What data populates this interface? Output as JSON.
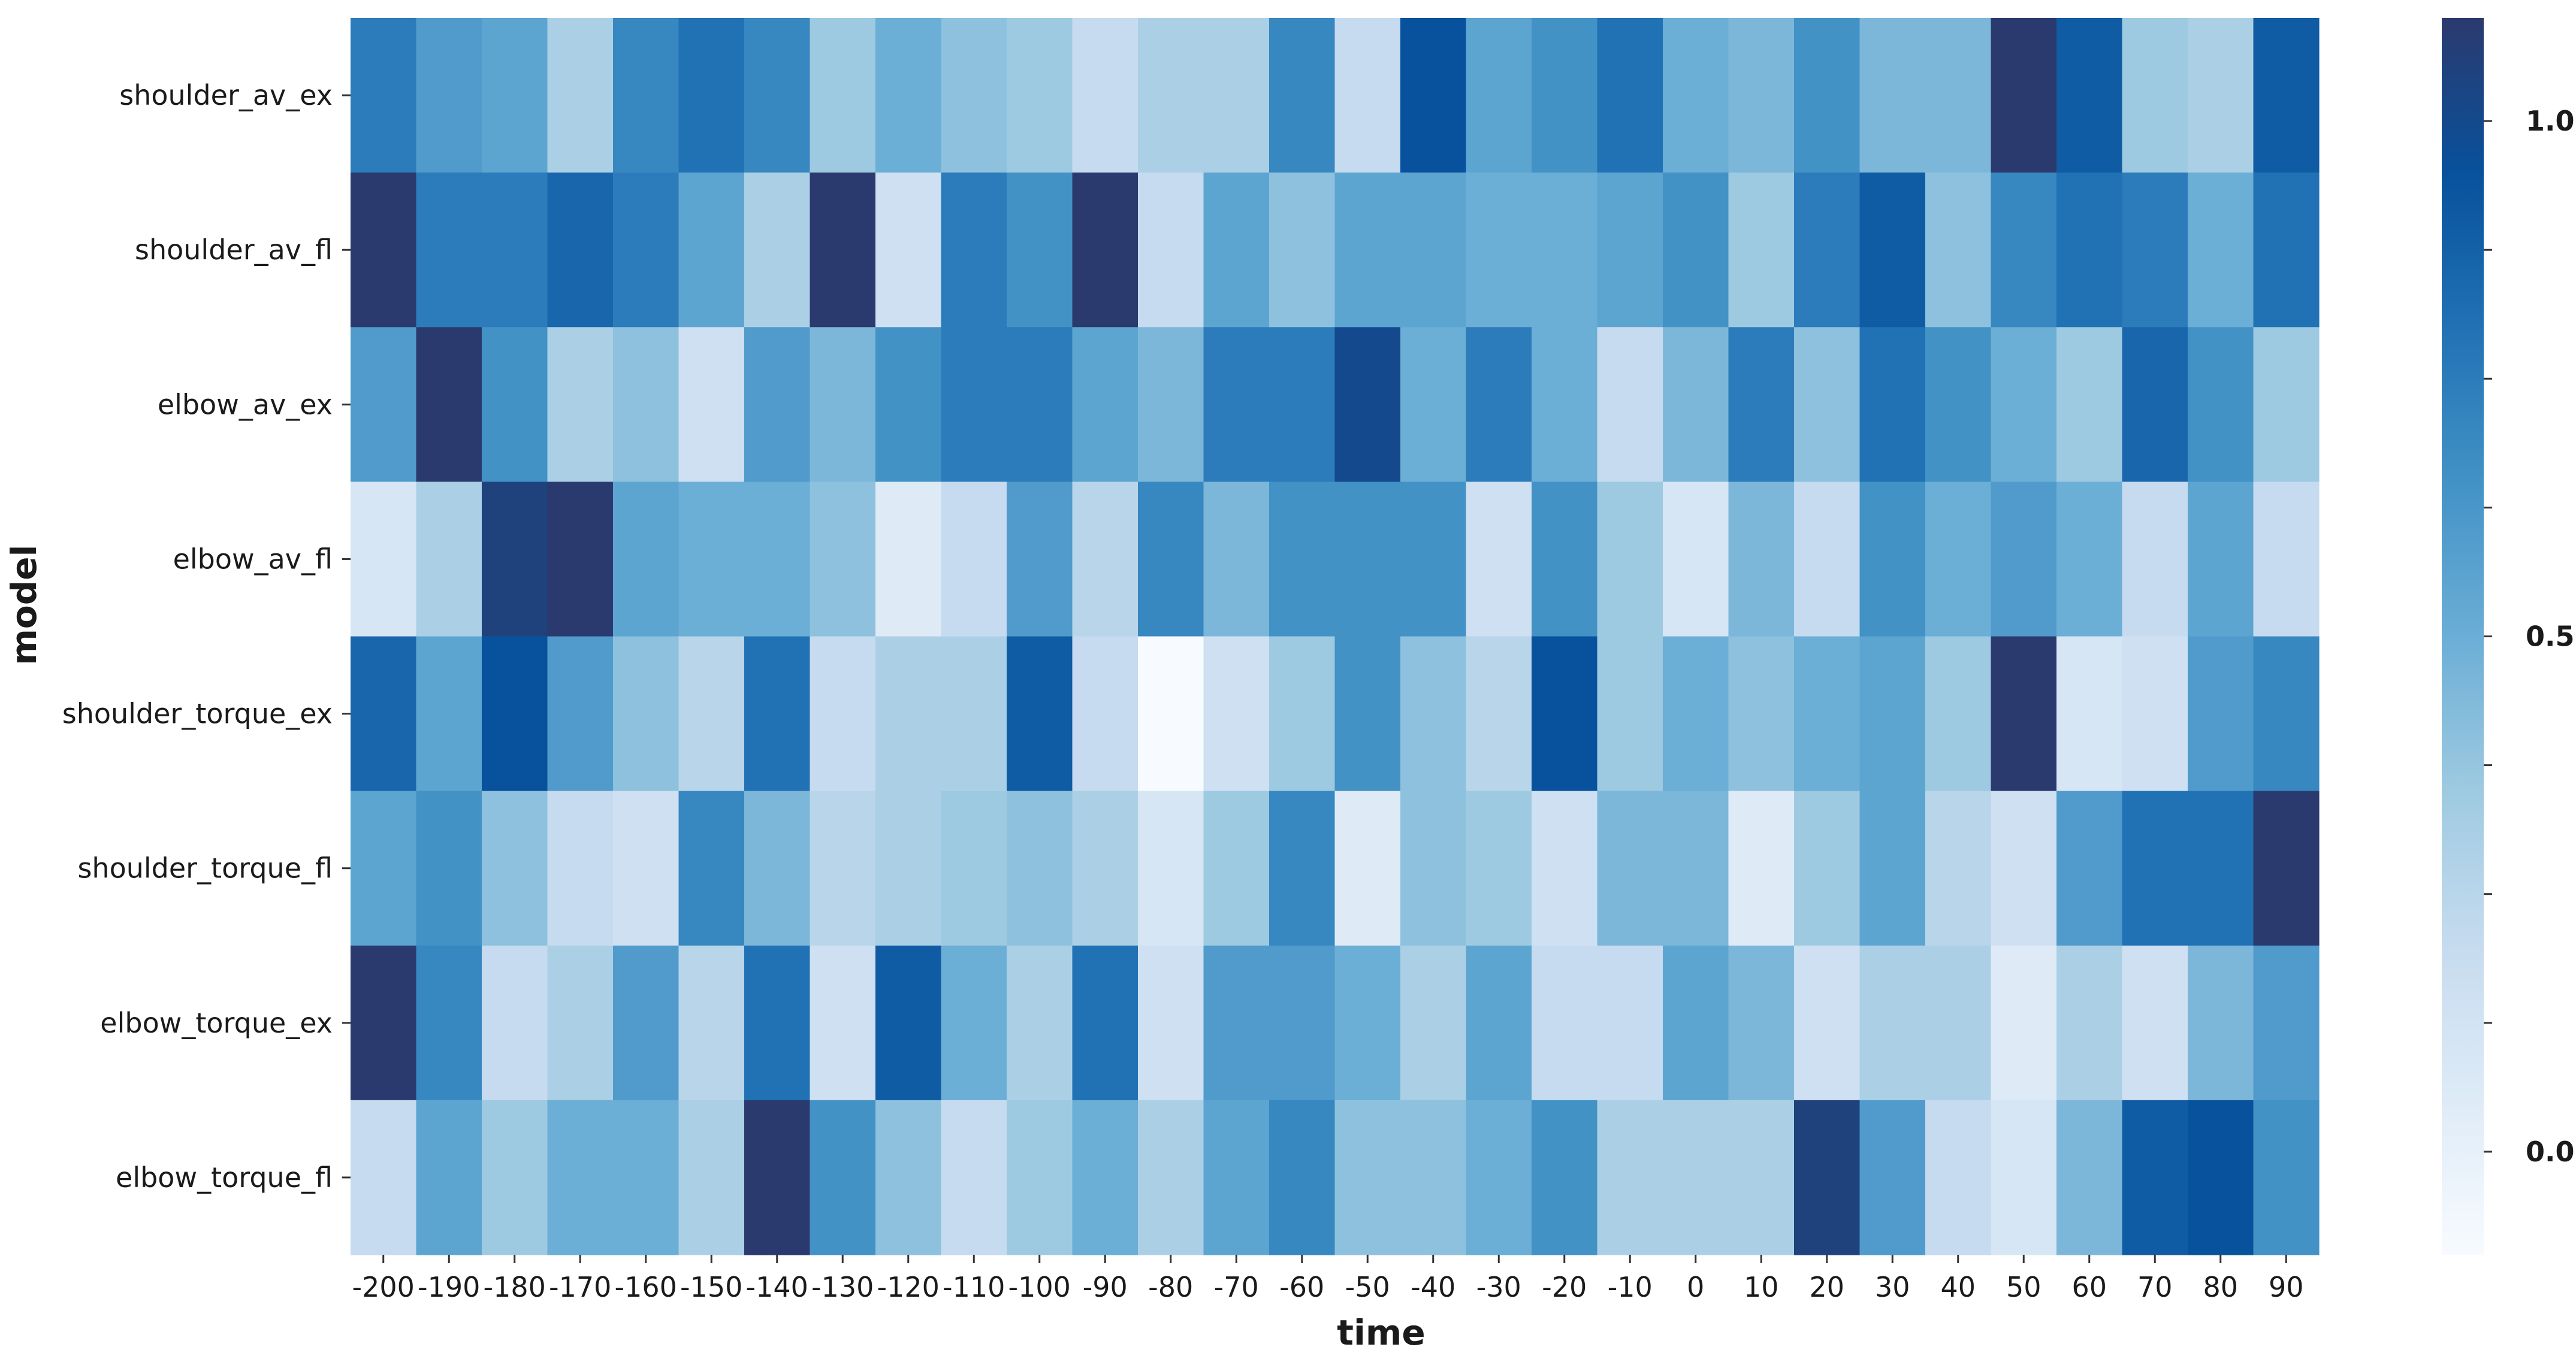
{
  "chart_data": {
    "type": "heatmap",
    "title": "",
    "xlabel": "time",
    "ylabel": "model",
    "x": [
      "-200",
      "-190",
      "-180",
      "-170",
      "-160",
      "-150",
      "-140",
      "-130",
      "-120",
      "-110",
      "-100",
      "-90",
      "-80",
      "-70",
      "-60",
      "-50",
      "-40",
      "-30",
      "-20",
      "-10",
      "0",
      "10",
      "20",
      "30",
      "40",
      "50",
      "60",
      "70",
      "80",
      "90"
    ],
    "y": [
      "shoulder_av_ex",
      "shoulder_av_fl",
      "elbow_av_ex",
      "elbow_av_fl",
      "shoulder_torque_ex",
      "shoulder_torque_fl",
      "elbow_torque_ex",
      "elbow_torque_fl"
    ],
    "values": [
      [
        0.75,
        0.6,
        0.55,
        0.3,
        0.7,
        0.8,
        0.7,
        0.35,
        0.5,
        0.4,
        0.35,
        0.2,
        0.3,
        0.3,
        0.7,
        0.2,
        0.95,
        0.55,
        0.65,
        0.8,
        0.5,
        0.45,
        0.65,
        0.45,
        0.45,
        1.1,
        0.9,
        0.35,
        0.3,
        0.9
      ],
      [
        1.1,
        0.75,
        0.75,
        0.85,
        0.75,
        0.55,
        0.3,
        1.1,
        0.15,
        0.75,
        0.65,
        1.1,
        0.2,
        0.55,
        0.4,
        0.55,
        0.55,
        0.5,
        0.5,
        0.55,
        0.65,
        0.35,
        0.75,
        0.9,
        0.4,
        0.7,
        0.8,
        0.75,
        0.5,
        0.8
      ],
      [
        0.6,
        1.1,
        0.65,
        0.3,
        0.4,
        0.15,
        0.6,
        0.45,
        0.65,
        0.75,
        0.75,
        0.55,
        0.45,
        0.75,
        0.75,
        1.0,
        0.5,
        0.75,
        0.5,
        0.2,
        0.45,
        0.75,
        0.4,
        0.8,
        0.65,
        0.5,
        0.35,
        0.85,
        0.65,
        0.35
      ],
      [
        0.1,
        0.3,
        1.05,
        1.1,
        0.55,
        0.5,
        0.5,
        0.4,
        0.05,
        0.2,
        0.6,
        0.25,
        0.7,
        0.45,
        0.65,
        0.65,
        0.65,
        0.15,
        0.65,
        0.35,
        0.1,
        0.45,
        0.2,
        0.65,
        0.5,
        0.6,
        0.5,
        0.2,
        0.55,
        0.2
      ],
      [
        0.85,
        0.55,
        0.95,
        0.6,
        0.4,
        0.25,
        0.8,
        0.2,
        0.3,
        0.3,
        0.9,
        0.2,
        -0.1,
        0.15,
        0.35,
        0.65,
        0.4,
        0.25,
        0.95,
        0.35,
        0.5,
        0.4,
        0.5,
        0.55,
        0.35,
        1.1,
        0.1,
        0.15,
        0.6,
        0.7
      ],
      [
        0.55,
        0.65,
        0.4,
        0.2,
        0.15,
        0.7,
        0.45,
        0.25,
        0.3,
        0.35,
        0.4,
        0.3,
        0.1,
        0.35,
        0.7,
        0.05,
        0.4,
        0.35,
        0.15,
        0.45,
        0.45,
        0.05,
        0.35,
        0.55,
        0.25,
        0.15,
        0.6,
        0.8,
        0.8,
        1.1
      ],
      [
        1.1,
        0.7,
        0.2,
        0.3,
        0.6,
        0.25,
        0.8,
        0.15,
        0.9,
        0.5,
        0.3,
        0.8,
        0.15,
        0.6,
        0.6,
        0.5,
        0.3,
        0.55,
        0.2,
        0.2,
        0.55,
        0.45,
        0.15,
        0.3,
        0.3,
        0.05,
        0.3,
        0.15,
        0.45,
        0.6
      ],
      [
        0.2,
        0.55,
        0.35,
        0.5,
        0.5,
        0.3,
        1.1,
        0.65,
        0.4,
        0.2,
        0.35,
        0.5,
        0.3,
        0.55,
        0.7,
        0.4,
        0.4,
        0.5,
        0.65,
        0.3,
        0.3,
        0.3,
        1.05,
        0.6,
        0.2,
        0.1,
        0.45,
        0.9,
        0.95,
        0.65
      ]
    ],
    "colorbar": {
      "min": -0.1,
      "max": 1.1,
      "tick_labels": [
        {
          "value": 1.0,
          "label": "1.0"
        },
        {
          "value": 0.875,
          "label": ""
        },
        {
          "value": 0.75,
          "label": ""
        },
        {
          "value": 0.625,
          "label": ""
        },
        {
          "value": 0.5,
          "label": "0.5"
        },
        {
          "value": 0.375,
          "label": ""
        },
        {
          "value": 0.25,
          "label": ""
        },
        {
          "value": 0.125,
          "label": ""
        },
        {
          "value": 0.0,
          "label": "0.0"
        }
      ]
    },
    "colormap": [
      "#f7fbff",
      "#deebf7",
      "#c6dbef",
      "#9ecae1",
      "#6baed6",
      "#4292c6",
      "#2171b5",
      "#08519c",
      "#2b3a6e"
    ]
  }
}
